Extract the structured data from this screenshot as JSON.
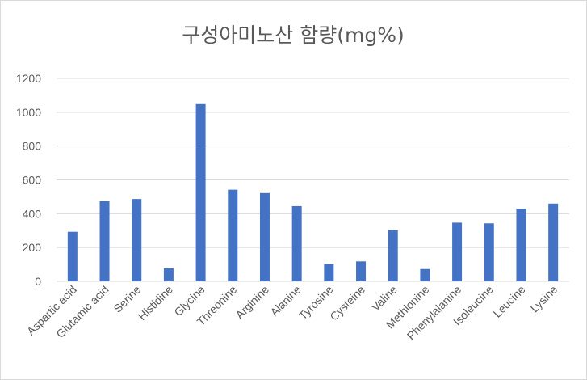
{
  "chart_data": {
    "type": "bar",
    "title": "구성아미노산 함량(mg%)",
    "xlabel": "",
    "ylabel": "",
    "ylim": [
      0,
      1200
    ],
    "yticks": [
      0,
      200,
      400,
      600,
      800,
      1000,
      1200
    ],
    "grid": true,
    "legend": "none",
    "bar_color": "#4472c4",
    "categories": [
      "Aspartic acid",
      "Glutamic acid",
      "Serine",
      "Histidine",
      "Glycine",
      "Threonine",
      "Arginine",
      "Alanine",
      "Tyrosine",
      "Cysteine",
      "Valine",
      "Methionine",
      "Phenylalanine",
      "Isoleucine",
      "Leucine",
      "Lysine"
    ],
    "values": [
      293,
      475,
      487,
      78,
      1048,
      542,
      522,
      445,
      102,
      118,
      303,
      73,
      347,
      343,
      430,
      460
    ]
  }
}
